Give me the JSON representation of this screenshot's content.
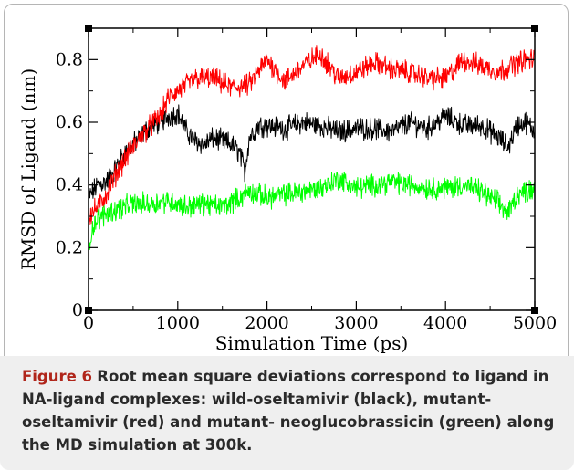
{
  "chart_data": {
    "type": "line",
    "title": "",
    "xlabel": "Simulation Time (ps)",
    "ylabel": "RMSD of Ligand  (nm)",
    "xlim": [
      0,
      5000
    ],
    "ylim": [
      0,
      0.9
    ],
    "xticks": [
      "0",
      "1000",
      "2000",
      "3000",
      "4000",
      "5000"
    ],
    "yticks": [
      "0",
      "0.2",
      "0.4",
      "0.6",
      "0.8"
    ],
    "grid": false,
    "series": [
      {
        "color": "#000000",
        "x": [
          0,
          100,
          200,
          300,
          400,
          500,
          600,
          700,
          800,
          900,
          1000,
          1100,
          1200,
          1300,
          1400,
          1500,
          1600,
          1700,
          1750,
          1800,
          1900,
          2000,
          2200,
          2400,
          2600,
          2800,
          3000,
          3200,
          3400,
          3600,
          3800,
          4000,
          4200,
          4400,
          4600,
          4700,
          4800,
          4900,
          5000
        ],
        "values": [
          0.36,
          0.4,
          0.41,
          0.45,
          0.5,
          0.53,
          0.56,
          0.59,
          0.6,
          0.62,
          0.63,
          0.57,
          0.54,
          0.53,
          0.55,
          0.54,
          0.53,
          0.5,
          0.44,
          0.55,
          0.59,
          0.59,
          0.58,
          0.6,
          0.59,
          0.57,
          0.58,
          0.58,
          0.57,
          0.6,
          0.58,
          0.62,
          0.59,
          0.59,
          0.55,
          0.52,
          0.59,
          0.6,
          0.57
        ]
      },
      {
        "color": "#ff0000",
        "x": [
          0,
          100,
          200,
          300,
          400,
          500,
          600,
          700,
          800,
          900,
          1000,
          1200,
          1400,
          1600,
          1800,
          2000,
          2200,
          2400,
          2600,
          2800,
          3000,
          3200,
          3400,
          3600,
          3800,
          4000,
          4200,
          4400,
          4600,
          4800,
          4900,
          5000
        ],
        "values": [
          0.3,
          0.33,
          0.37,
          0.43,
          0.48,
          0.52,
          0.56,
          0.59,
          0.62,
          0.68,
          0.7,
          0.74,
          0.74,
          0.71,
          0.72,
          0.8,
          0.73,
          0.78,
          0.82,
          0.74,
          0.76,
          0.79,
          0.77,
          0.76,
          0.74,
          0.74,
          0.8,
          0.78,
          0.76,
          0.79,
          0.8,
          0.8
        ]
      },
      {
        "color": "#00ff00",
        "x": [
          0,
          50,
          100,
          200,
          300,
          400,
          500,
          700,
          900,
          1100,
          1300,
          1500,
          1700,
          1800,
          1900,
          2000,
          2200,
          2400,
          2600,
          2800,
          3000,
          3200,
          3400,
          3600,
          3800,
          4000,
          4200,
          4400,
          4600,
          4700,
          4800,
          4900,
          5000
        ],
        "values": [
          0.2,
          0.27,
          0.29,
          0.31,
          0.32,
          0.33,
          0.34,
          0.34,
          0.35,
          0.33,
          0.34,
          0.33,
          0.36,
          0.38,
          0.37,
          0.36,
          0.37,
          0.38,
          0.39,
          0.42,
          0.39,
          0.4,
          0.41,
          0.4,
          0.39,
          0.39,
          0.4,
          0.38,
          0.34,
          0.31,
          0.37,
          0.38,
          0.39
        ]
      }
    ]
  },
  "caption": {
    "label": "Figure 6",
    "text": "Root mean square deviations correspond to ligand in NA-ligand complexes: wild-oseltamivir (black), mutant-oseltamivir (red) and mutant- neoglucobrassicin (green) along the MD simulation at 300k."
  }
}
